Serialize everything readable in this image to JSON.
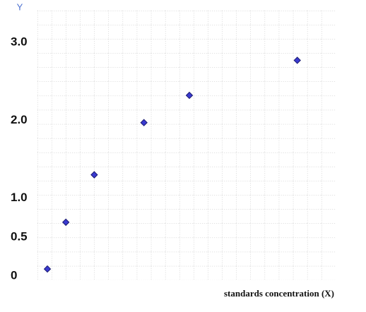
{
  "chart_data": {
    "type": "scatter",
    "title": "Y",
    "xlabel": "standards concentration (X)",
    "x": [
      0.7,
      2.0,
      4.0,
      7.5,
      10.7,
      18.3
    ],
    "values": [
      0.09,
      0.69,
      1.3,
      1.97,
      2.32,
      2.77
    ],
    "color": "#3a3ad0",
    "xlim": [
      0,
      21
    ],
    "ylim": [
      0,
      3.3
    ],
    "yticks": [
      0,
      {
        "value": 0.5,
        "label": "0.5"
      },
      {
        "value": 1,
        "label": "1.0"
      },
      {
        "value": 2,
        "label": "2.0"
      },
      {
        "value": 3,
        "label": "3.0"
      }
    ],
    "grid": true
  }
}
